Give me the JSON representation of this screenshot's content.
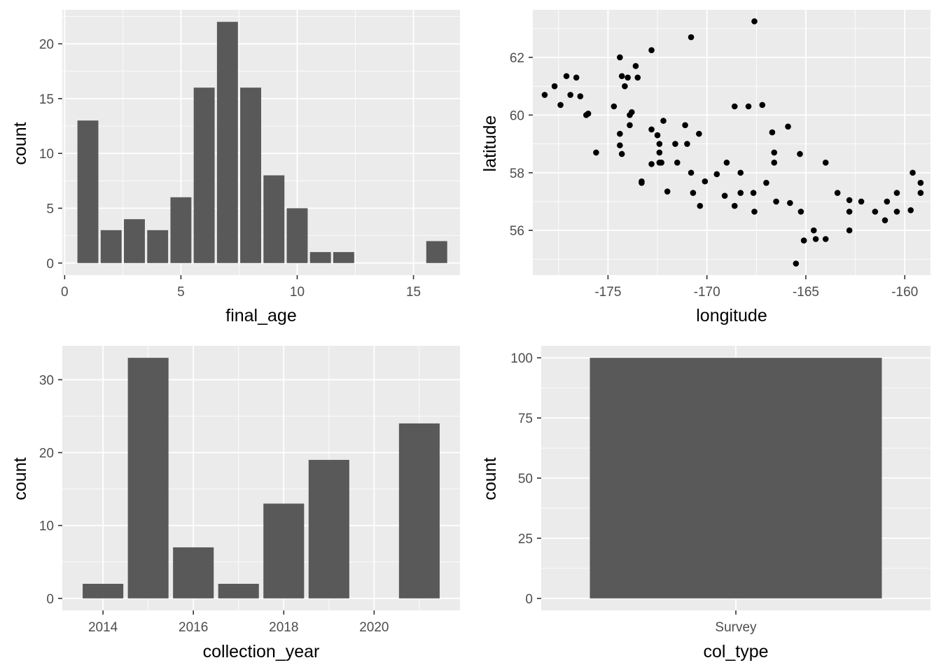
{
  "chart_data": [
    {
      "type": "bar",
      "xlabel": "final_age",
      "ylabel": "count",
      "x": [
        1,
        2,
        3,
        4,
        5,
        6,
        7,
        8,
        9,
        10,
        11,
        12,
        16
      ],
      "values": [
        13,
        3,
        4,
        3,
        6,
        16,
        22,
        16,
        8,
        5,
        1,
        1,
        2
      ],
      "xlim": [
        -0.1,
        17
      ],
      "ylim": [
        -1.1,
        23.1
      ],
      "xticks": [
        0,
        5,
        10,
        15
      ],
      "yticks": [
        0,
        5,
        10,
        15,
        20
      ],
      "grid": true,
      "colors": {
        "panel": "#ebebeb",
        "grid": "#ffffff",
        "bar": "#595959"
      }
    },
    {
      "type": "scatter",
      "xlabel": "longitude",
      "ylabel": "latitude",
      "points": [
        [
          -178.2,
          60.7
        ],
        [
          -177.7,
          61.0
        ],
        [
          -177.4,
          60.35
        ],
        [
          -177.1,
          61.35
        ],
        [
          -176.9,
          60.7
        ],
        [
          -176.6,
          61.3
        ],
        [
          -176.4,
          60.65
        ],
        [
          -176.1,
          60.0
        ],
        [
          -176.0,
          60.05
        ],
        [
          -175.6,
          58.7
        ],
        [
          -174.7,
          60.3
        ],
        [
          -174.4,
          62.0
        ],
        [
          -174.3,
          61.35
        ],
        [
          -174.15,
          61.0
        ],
        [
          -174.0,
          61.3
        ],
        [
          -174.4,
          59.35
        ],
        [
          -174.4,
          58.95
        ],
        [
          -174.3,
          58.65
        ],
        [
          -173.9,
          60.0
        ],
        [
          -173.8,
          60.1
        ],
        [
          -173.9,
          59.65
        ],
        [
          -173.6,
          61.7
        ],
        [
          -173.5,
          61.3
        ],
        [
          -173.3,
          57.7
        ],
        [
          -173.3,
          57.65
        ],
        [
          -172.8,
          62.25
        ],
        [
          -172.8,
          59.5
        ],
        [
          -172.8,
          58.3
        ],
        [
          -172.5,
          59.3
        ],
        [
          -172.4,
          59.0
        ],
        [
          -172.4,
          58.7
        ],
        [
          -172.4,
          58.35
        ],
        [
          -172.2,
          59.8
        ],
        [
          -172.3,
          58.35
        ],
        [
          -172.0,
          57.35
        ],
        [
          -171.6,
          59.0
        ],
        [
          -171.5,
          58.35
        ],
        [
          -171.1,
          59.65
        ],
        [
          -171.0,
          59.0
        ],
        [
          -170.8,
          58.0
        ],
        [
          -170.8,
          62.7
        ],
        [
          -170.7,
          57.3
        ],
        [
          -170.4,
          59.35
        ],
        [
          -170.35,
          56.85
        ],
        [
          -170.1,
          57.7
        ],
        [
          -169.5,
          57.95
        ],
        [
          -169.1,
          57.2
        ],
        [
          -169.0,
          58.35
        ],
        [
          -168.6,
          56.85
        ],
        [
          -168.6,
          60.3
        ],
        [
          -168.3,
          58.0
        ],
        [
          -168.3,
          57.3
        ],
        [
          -167.9,
          60.3
        ],
        [
          -167.65,
          57.3
        ],
        [
          -167.6,
          56.65
        ],
        [
          -167.6,
          63.25
        ],
        [
          -167.2,
          60.35
        ],
        [
          -167.0,
          57.65
        ],
        [
          -166.7,
          59.4
        ],
        [
          -166.6,
          58.7
        ],
        [
          -166.6,
          58.35
        ],
        [
          -166.5,
          57.0
        ],
        [
          -165.9,
          59.6
        ],
        [
          -165.8,
          56.95
        ],
        [
          -165.5,
          54.85
        ],
        [
          -165.3,
          58.65
        ],
        [
          -165.25,
          56.65
        ],
        [
          -165.1,
          55.65
        ],
        [
          -164.6,
          56.0
        ],
        [
          -164.5,
          55.7
        ],
        [
          -164.0,
          58.35
        ],
        [
          -164.0,
          55.7
        ],
        [
          -163.4,
          57.3
        ],
        [
          -162.8,
          56.65
        ],
        [
          -162.8,
          57.05
        ],
        [
          -162.8,
          56.0
        ],
        [
          -162.2,
          57.0
        ],
        [
          -161.5,
          56.65
        ],
        [
          -161.0,
          56.35
        ],
        [
          -160.9,
          57.0
        ],
        [
          -160.4,
          57.3
        ],
        [
          -160.4,
          56.65
        ],
        [
          -159.7,
          56.7
        ],
        [
          -159.6,
          58.0
        ],
        [
          -159.2,
          57.65
        ],
        [
          -159.2,
          57.3
        ]
      ],
      "xlim": [
        -178.8,
        -158.7
      ],
      "ylim": [
        54.45,
        63.65
      ],
      "xticks": [
        -175,
        -170,
        -165,
        -160
      ],
      "yticks": [
        56,
        58,
        60,
        62
      ],
      "grid": true,
      "colors": {
        "panel": "#ebebeb",
        "grid": "#ffffff",
        "point": "#000000"
      }
    },
    {
      "type": "bar",
      "xlabel": "collection_year",
      "ylabel": "count",
      "x": [
        2014,
        2015,
        2016,
        2017,
        2018,
        2019,
        2021
      ],
      "values": [
        2,
        33,
        7,
        2,
        13,
        19,
        24
      ],
      "xlim": [
        2013.1,
        2021.9
      ],
      "ylim": [
        -1.65,
        34.65
      ],
      "xticks": [
        2014,
        2016,
        2018,
        2020
      ],
      "yticks": [
        0,
        10,
        20,
        30
      ],
      "grid": true,
      "colors": {
        "panel": "#ebebeb",
        "grid": "#ffffff",
        "bar": "#595959"
      }
    },
    {
      "type": "bar",
      "xlabel": "col_type",
      "ylabel": "count",
      "categories": [
        "Survey"
      ],
      "values": [
        100
      ],
      "xlim": [
        0.4,
        1.6
      ],
      "ylim": [
        -5,
        105
      ],
      "yticks": [
        0,
        25,
        50,
        75,
        100
      ],
      "grid": true,
      "colors": {
        "panel": "#ebebeb",
        "grid": "#ffffff",
        "bar": "#595959"
      }
    }
  ]
}
